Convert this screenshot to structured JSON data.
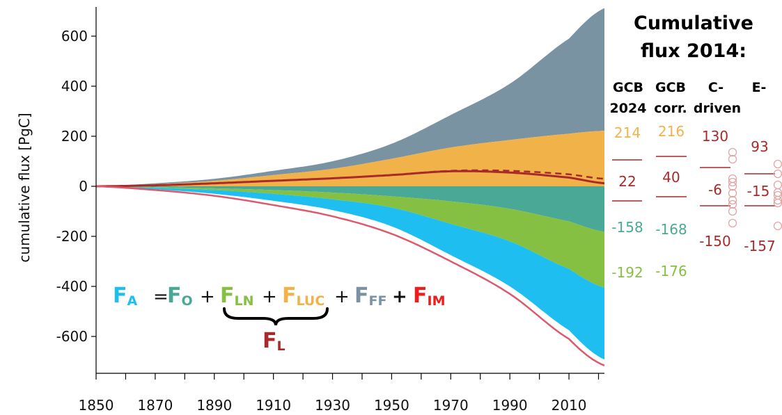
{
  "chart_data": {
    "type": "area",
    "ylabel": "cumulative flux [PgC]",
    "xlabel": "",
    "xlim": [
      1850,
      2022
    ],
    "ylim": [
      -760,
      720
    ],
    "xticks": [
      1850,
      1860,
      1870,
      1880,
      1890,
      1900,
      1910,
      1920,
      1930,
      1940,
      1950,
      1960,
      1970,
      1980,
      1990,
      2000,
      2010,
      2020
    ],
    "xtick_labels": [
      "1850",
      "1870",
      "1890",
      "1910",
      "1930",
      "1950",
      "1970",
      "1990",
      "2010"
    ],
    "xtick_label_values": [
      1850,
      1870,
      1890,
      1910,
      1930,
      1950,
      1970,
      1990,
      2010
    ],
    "yticks": [
      600,
      400,
      200,
      0,
      -200,
      -400,
      -600
    ],
    "ytick_labels": [
      "600",
      "400",
      "200",
      "0",
      "-200",
      "-400",
      "-600"
    ],
    "grid": false,
    "x": [
      1850,
      1870,
      1890,
      1910,
      1930,
      1950,
      1970,
      1990,
      2010,
      2022
    ],
    "series": [
      {
        "id": "FF",
        "color": "#7a93a2",
        "base": [
          0,
          12,
          30,
          62,
          100,
          170,
          285,
          410,
          590,
          712
        ]
      },
      {
        "id": "LUC",
        "color": "#f1b24a",
        "base": [
          0,
          8,
          22,
          45,
          70,
          110,
          155,
          185,
          210,
          222
        ]
      },
      {
        "id": "O",
        "color": "#4aa996",
        "base": [
          0,
          -3,
          -8,
          -15,
          -25,
          -40,
          -60,
          -90,
          -140,
          -182
        ]
      },
      {
        "id": "LN",
        "color": "#86c042",
        "base": [
          0,
          -6,
          -15,
          -30,
          -52,
          -85,
          -150,
          -220,
          -330,
          -405
        ]
      },
      {
        "id": "A",
        "color": "#1ebff0",
        "base": [
          0,
          -12,
          -30,
          -58,
          -95,
          -160,
          -275,
          -400,
          -575,
          -692
        ]
      },
      {
        "id": "FL",
        "color": "#a82a2a",
        "style": "solid",
        "base": [
          0,
          4,
          12,
          22,
          32,
          45,
          60,
          55,
          35,
          12
        ]
      },
      {
        "id": "FL-dashed",
        "color": "#a82a2a",
        "style": "dashed",
        "base": [
          0,
          4,
          12,
          22,
          32,
          45,
          62,
          62,
          48,
          30
        ]
      },
      {
        "id": "total",
        "color": "#dc5a6e",
        "style": "solid",
        "base": [
          0,
          -15,
          -38,
          -75,
          -120,
          -190,
          -300,
          -430,
          -610,
          -716
        ]
      }
    ]
  },
  "equation": {
    "fa_main": "F",
    "fa_sub": "A",
    "eq": "=",
    "fo_main": "F",
    "fo_sub": "O",
    "plus1": "+",
    "fln_main": "F",
    "fln_sub": "LN",
    "plus2": "+",
    "fluc_main": "F",
    "fluc_sub": "LUC",
    "plus3": "+",
    "fff_main": "F",
    "fff_sub": "FF",
    "plus4": "+",
    "fim_main": "F",
    "fim_sub": "IM",
    "fl_main": "F",
    "fl_sub": "L"
  },
  "table": {
    "title_line1": "Cumulative",
    "title_line2": "flux 2014:",
    "col1_line1": "GCB",
    "col1_line2": "2024",
    "col2_line1": "GCB",
    "col2_line2": "corr.",
    "col3_line1": "C-",
    "col3_line2": "driven",
    "col4_line1": "E-",
    "gcb2024": {
      "luc": "214",
      "fl": "22",
      "o": "-158",
      "ln": "-192"
    },
    "gcbcorr": {
      "luc": "216",
      "fl": "40",
      "o": "-168",
      "ln": "-176"
    },
    "cdriven": {
      "top": "130",
      "mid": "-6",
      "bot": "-150"
    },
    "edriven": {
      "top": "93",
      "mid": "-15",
      "bot": "-157"
    },
    "colors": {
      "luc": "#f1b24a",
      "fl": "#a82a2a",
      "o": "#4aa996",
      "ln": "#86c042"
    }
  }
}
